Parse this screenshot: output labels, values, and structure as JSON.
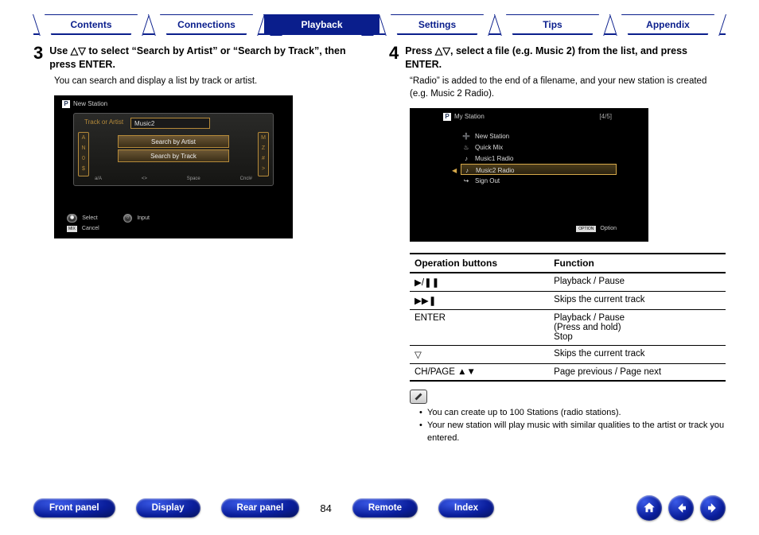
{
  "tabs": [
    "Contents",
    "Connections",
    "Playback",
    "Settings",
    "Tips",
    "Appendix"
  ],
  "active_tab_index": 2,
  "step3": {
    "num": "3",
    "heading": "Use △▽ to select “Search by Artist” or “Search by Track”, then press ENTER.",
    "sub": "You can search and display a list by track or artist.",
    "shot": {
      "title": "New Station",
      "hint": "Track or Artist",
      "input": "Music2",
      "left_keys": [
        "A",
        "N",
        "0",
        "$"
      ],
      "right_keys": [
        "M",
        "Z",
        "#",
        ">"
      ],
      "menu": [
        "Search by Artist",
        "Search by Track"
      ],
      "bottom_hints": [
        "a/A",
        "<>",
        "Space",
        "Cncl#"
      ],
      "legend1_key1": "◉",
      "legend1_txt1": "Select",
      "legend1_key2": "○",
      "legend1_txt2": "Input",
      "legend2_key": "MIX",
      "legend2_txt": "Cancel"
    }
  },
  "step4": {
    "num": "4",
    "heading": "Press △▽, select a file (e.g. Music 2) from the list, and press ENTER.",
    "sub": "“Radio” is added to the end of a filename, and your new station is created (e.g. Music 2 Radio).",
    "shot": {
      "title": "My Station",
      "count": "[4/5]",
      "items": [
        {
          "icon": "➕",
          "label": "New Station"
        },
        {
          "icon": "♨",
          "label": "Quick Mix"
        },
        {
          "icon": "♪",
          "label": "Music1 Radio"
        },
        {
          "icon": "♪",
          "label": "Music2 Radio",
          "selected": true
        },
        {
          "icon": "↪",
          "label": "Sign Out"
        }
      ],
      "opt_key": "OPTION",
      "opt_txt": "Option"
    }
  },
  "table": {
    "head1": "Operation buttons",
    "head2": "Function",
    "rows": [
      {
        "b": "▶/❚❚",
        "f": "Playback / Pause"
      },
      {
        "b": "▶▶❚",
        "f": "Skips the current track"
      },
      {
        "b": "ENTER",
        "f": "Playback / Pause\n(Press and hold)\nStop"
      },
      {
        "b": "▽",
        "f": "Skips the current track"
      },
      {
        "b": "CH/PAGE ▲▼",
        "f": "Page previous / Page next"
      }
    ]
  },
  "notes": [
    "You can create up to 100 Stations (radio stations).",
    "Your new station will play music with similar qualities to the artist or track you entered."
  ],
  "footer": {
    "buttons_left": [
      "Front panel",
      "Display",
      "Rear panel"
    ],
    "page": "84",
    "buttons_right": [
      "Remote",
      "Index"
    ]
  },
  "colors": {
    "brand": "#0a1e8c",
    "accent": "#d6a94a"
  }
}
